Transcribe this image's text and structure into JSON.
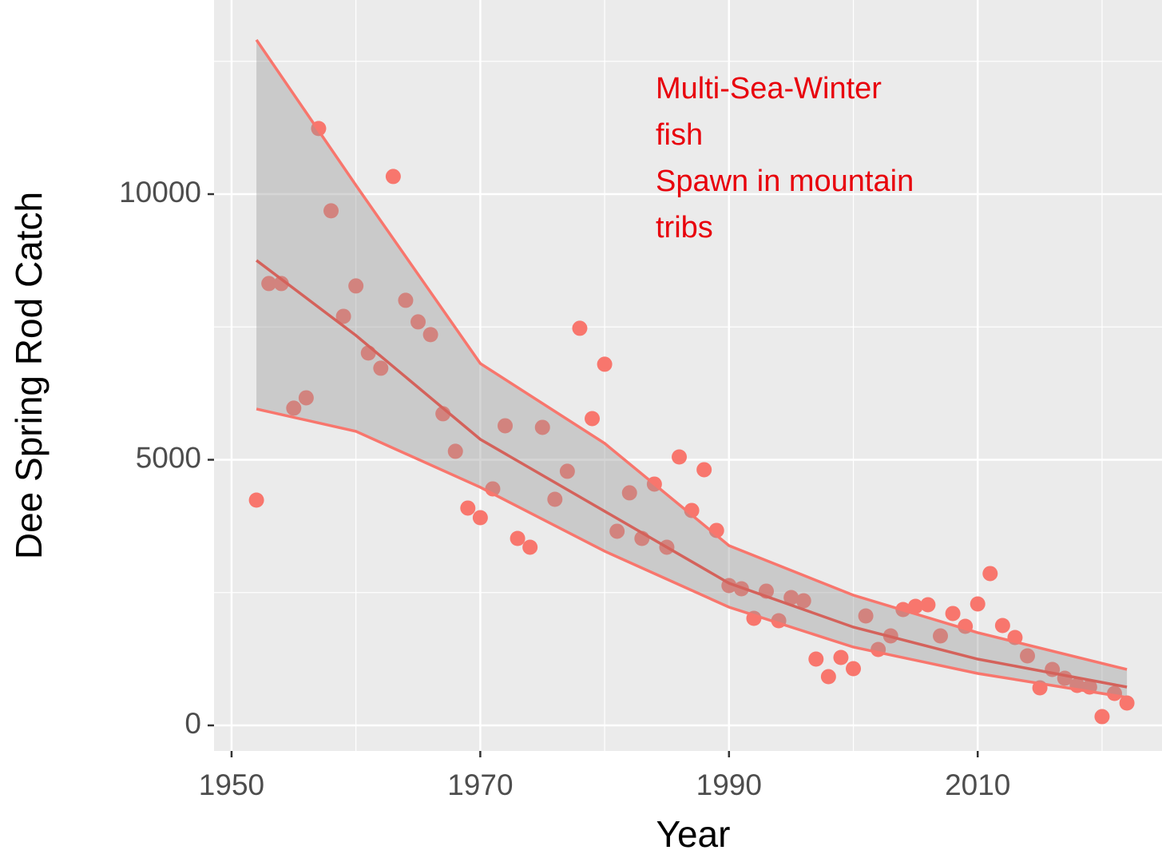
{
  "chart_data": {
    "type": "scatter",
    "x_label": "Year",
    "y_label": "Dee Spring Rod Catch",
    "annotation": [
      "Multi-Sea-Winter",
      "fish",
      "Spawn in mountain",
      "tribs"
    ],
    "annotation_color": "#e8000b",
    "xlim": [
      1948.59,
      2024.82
    ],
    "ylim": [
      -481,
      13654
    ],
    "xticks": [
      1950,
      1970,
      1990,
      2010
    ],
    "yticks": [
      0,
      5000,
      10000
    ],
    "minor_xticks": [
      1960,
      1980,
      2000,
      2020
    ],
    "minor_yticks": [
      2500,
      7500,
      12500
    ],
    "grid": true,
    "series": [
      {
        "color": "#F8766D",
        "x": [
          1952,
          1953,
          1954,
          1955,
          1956,
          1957,
          1958,
          1959,
          1960,
          1961,
          1962,
          1963,
          1964,
          1965,
          1966,
          1967,
          1968,
          1969,
          1970,
          1971,
          1972,
          1973,
          1974,
          1975,
          1976,
          1977,
          1978,
          1979,
          1980,
          1981,
          1982,
          1983,
          1984,
          1985,
          1986,
          1987,
          1988,
          1989,
          1990,
          1991,
          1992,
          1993,
          1994,
          1995,
          1996,
          1997,
          1998,
          1999,
          2000,
          2001,
          2002,
          2003,
          2004,
          2005,
          2006,
          2007,
          2008,
          2009,
          2010,
          2011,
          2012,
          2013,
          2014,
          2015,
          2016,
          2017,
          2018,
          2019,
          2020,
          2021,
          2022
        ],
        "values": [
          4241,
          8317,
          8317,
          5971,
          6166,
          11235,
          9686,
          7700,
          8272,
          7009,
          6723,
          10332,
          8001,
          7595,
          7355,
          5866,
          5159,
          4091,
          3910,
          4452,
          5640,
          3519,
          3354,
          5610,
          4256,
          4783,
          7475,
          5775,
          6798,
          3655,
          4377,
          3519,
          4542,
          3354,
          5053,
          4046,
          4813,
          3670,
          2632,
          2572,
          2015,
          2527,
          1970,
          2406,
          2346,
          1248,
          917,
          1278,
          1068,
          2060,
          1429,
          1684,
          2181,
          2241,
          2271,
          1684,
          2106,
          1865,
          2286,
          2858,
          1880,
          1654,
          1308,
          707,
          1053,
          887,
          752,
          722,
          165,
          602,
          421
        ]
      }
    ],
    "fit": {
      "color": "#F8766D",
      "band_color": "#999999",
      "x": [
        1952,
        1960,
        1970,
        1980,
        1990,
        2000,
        2010,
        2022
      ],
      "values": [
        8753,
        7340,
        5385,
        4031,
        2677,
        1850,
        1248,
        722
      ],
      "upper": [
        12904,
        10167,
        6813,
        5309,
        3384,
        2451,
        1745,
        1053
      ],
      "lower": [
        5956,
        5535,
        4482,
        3279,
        2226,
        1474,
        978,
        526
      ]
    }
  }
}
